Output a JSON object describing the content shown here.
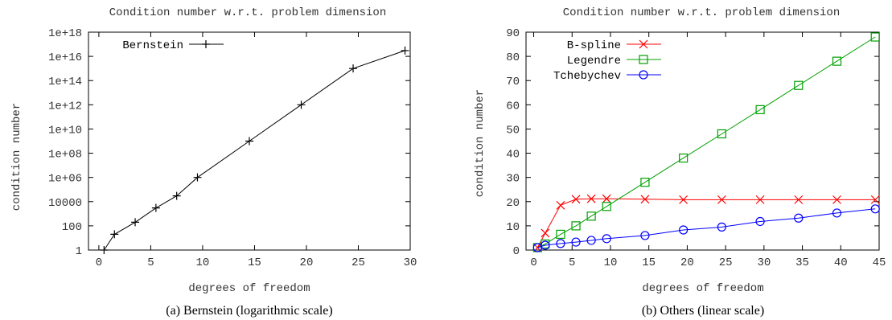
{
  "chart_data": [
    {
      "type": "line",
      "title": "Condition number w.r.t. problem dimension",
      "xlabel": "degrees of freedom",
      "ylabel": "condition number",
      "caption": "(a) Bernstein (logarithmic scale)",
      "yscale": "log",
      "xlim": [
        -1,
        30
      ],
      "ylim": [
        1,
        1e+18
      ],
      "x_ticks": [
        0,
        5,
        10,
        15,
        20,
        25,
        30
      ],
      "y_ticks": [
        {
          "value": 1,
          "label": "1"
        },
        {
          "value": 100,
          "label": "100"
        },
        {
          "value": 10000,
          "label": "10000"
        },
        {
          "value": 1000000,
          "label": "1e+06"
        },
        {
          "value": 100000000,
          "label": "1e+08"
        },
        {
          "value": 10000000000,
          "label": "1e+10"
        },
        {
          "value": 1000000000000,
          "label": "1e+12"
        },
        {
          "value": 100000000000000,
          "label": "1e+14"
        },
        {
          "value": 10000000000000000,
          "label": "1e+16"
        },
        {
          "value": 1000000000000000000,
          "label": "1e+18"
        }
      ],
      "legend_position": "top-left",
      "series": [
        {
          "name": "Bernstein",
          "color": "#000000",
          "marker": "plus",
          "x": [
            0.5,
            1.5,
            3.5,
            5.5,
            7.5,
            9.5,
            14.5,
            19.5,
            24.5,
            29.5
          ],
          "y": [
            1,
            20,
            200,
            3000,
            30000,
            1000000,
            1000000000,
            1000000000000,
            1000000000000000,
            30000000000000000
          ]
        }
      ]
    },
    {
      "type": "line",
      "title": "Condition number w.r.t. problem dimension",
      "xlabel": "degrees of freedom",
      "ylabel": "condition number",
      "caption": "(b) Others (linear scale)",
      "yscale": "linear",
      "xlim": [
        -1,
        45
      ],
      "ylim": [
        0,
        90
      ],
      "x_ticks": [
        0,
        5,
        10,
        15,
        20,
        25,
        30,
        35,
        40,
        45
      ],
      "y_ticks": [
        0,
        10,
        20,
        30,
        40,
        50,
        60,
        70,
        80,
        90
      ],
      "legend_position": "top-left",
      "series": [
        {
          "name": "B-spline",
          "color": "#ff0000",
          "marker": "cross",
          "x": [
            0.5,
            1.5,
            3.5,
            5.5,
            7.5,
            9.5,
            14.5,
            19.5,
            24.5,
            29.5,
            34.5,
            39.5,
            44.5
          ],
          "y": [
            1,
            7,
            18.5,
            21,
            21.2,
            21.2,
            21,
            20.8,
            20.8,
            20.8,
            20.8,
            20.8,
            20.8
          ]
        },
        {
          "name": "Legendre",
          "color": "#00a000",
          "marker": "square",
          "x": [
            0.5,
            1.5,
            3.5,
            5.5,
            7.5,
            9.5,
            14.5,
            19.5,
            24.5,
            29.5,
            34.5,
            39.5,
            44.5
          ],
          "y": [
            1,
            2.5,
            6.5,
            10,
            14,
            18,
            28,
            38,
            48,
            58,
            68,
            78,
            88
          ]
        },
        {
          "name": "Tchebychev",
          "color": "#0000ff",
          "marker": "circle",
          "x": [
            0.5,
            1.5,
            3.5,
            5.5,
            7.5,
            9.5,
            14.5,
            19.5,
            24.5,
            29.5,
            34.5,
            39.5,
            44.5
          ],
          "y": [
            1,
            2,
            2.7,
            3.3,
            4,
            4.7,
            6,
            8.3,
            9.5,
            11.8,
            13.2,
            15.3,
            17
          ]
        }
      ]
    }
  ]
}
